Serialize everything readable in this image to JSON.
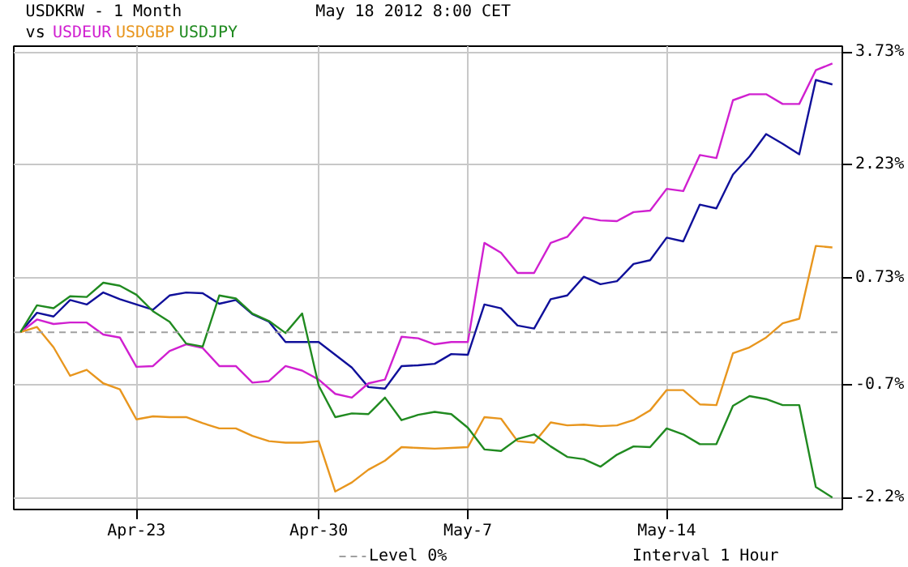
{
  "chart_data": {
    "type": "line",
    "title": "USDKRW - 1 Month",
    "subtitle": "May 18 2012 8:00 CET",
    "legend_title": "vs",
    "grid": true,
    "marker": "none",
    "line_style": "solid",
    "categories": [
      null,
      null,
      null,
      null,
      null,
      null,
      null,
      "Apr-23",
      null,
      null,
      null,
      null,
      null,
      null,
      null,
      null,
      null,
      null,
      "Apr-30",
      null,
      null,
      null,
      null,
      null,
      null,
      null,
      null,
      "May-7",
      null,
      null,
      null,
      null,
      null,
      null,
      null,
      null,
      null,
      null,
      null,
      "May-14",
      null,
      null,
      null,
      null,
      null,
      null,
      null,
      null,
      null,
      null
    ],
    "ylim": [
      -2.36,
      3.81
    ],
    "yticks": [
      {
        "value": 3.73,
        "label": "3.73%"
      },
      {
        "value": 2.23,
        "label": "2.23%"
      },
      {
        "value": 0.73,
        "label": "0.73%"
      },
      {
        "value": -0.7,
        "label": "-0.7%"
      },
      {
        "value": -2.2,
        "label": "-2.2%"
      }
    ],
    "ref_lines": [
      {
        "axis": "y",
        "value": 0,
        "label": "Level 0%",
        "color": "#a0a0a0",
        "line_style": "dashed"
      }
    ],
    "annotations": [
      "Interval 1 Hour"
    ],
    "series": [
      {
        "color": "#10109a",
        "values": [
          0,
          0.26,
          0.21,
          0.43,
          0.37,
          0.53,
          0.44,
          0.37,
          0.3,
          0.49,
          0.53,
          0.52,
          0.38,
          0.43,
          0.24,
          0.14,
          -0.13,
          -0.13,
          -0.13,
          -0.3,
          -0.47,
          -0.73,
          -0.75,
          -0.45,
          -0.44,
          -0.42,
          -0.29,
          -0.3,
          0.37,
          0.32,
          0.09,
          0.05,
          0.44,
          0.49,
          0.74,
          0.64,
          0.68,
          0.91,
          0.96,
          1.26,
          1.21,
          1.7,
          1.65,
          2.1,
          2.34,
          2.64,
          2.51,
          2.37,
          3.36,
          3.3
        ]
      },
      {
        "name": "USDEUR",
        "color": "#d020d0",
        "values": [
          0,
          0.17,
          0.11,
          0.13,
          0.13,
          -0.03,
          -0.07,
          -0.46,
          -0.45,
          -0.25,
          -0.16,
          -0.21,
          -0.45,
          -0.45,
          -0.67,
          -0.65,
          -0.45,
          -0.51,
          -0.63,
          -0.82,
          -0.87,
          -0.68,
          -0.63,
          -0.06,
          -0.08,
          -0.16,
          -0.13,
          -0.13,
          1.19,
          1.06,
          0.79,
          0.79,
          1.19,
          1.27,
          1.53,
          1.49,
          1.48,
          1.6,
          1.62,
          1.91,
          1.88,
          2.36,
          2.32,
          3.09,
          3.17,
          3.17,
          3.04,
          3.04,
          3.49,
          3.58
        ]
      },
      {
        "name": "USDGBP",
        "color": "#e8961e",
        "values": [
          0,
          0.07,
          -0.2,
          -0.58,
          -0.5,
          -0.68,
          -0.76,
          -1.16,
          -1.12,
          -1.13,
          -1.13,
          -1.21,
          -1.28,
          -1.28,
          -1.38,
          -1.45,
          -1.47,
          -1.47,
          -1.45,
          -2.12,
          -2.0,
          -1.83,
          -1.71,
          -1.53,
          -1.54,
          -1.55,
          -1.54,
          -1.53,
          -1.13,
          -1.15,
          -1.45,
          -1.47,
          -1.2,
          -1.24,
          -1.23,
          -1.25,
          -1.24,
          -1.17,
          -1.04,
          -0.77,
          -0.77,
          -0.96,
          -0.97,
          -0.28,
          -0.2,
          -0.07,
          0.12,
          0.18,
          1.15,
          1.13
        ]
      },
      {
        "name": "USDJPY",
        "color": "#208a20",
        "values": [
          0,
          0.36,
          0.32,
          0.48,
          0.47,
          0.66,
          0.62,
          0.5,
          0.28,
          0.14,
          -0.15,
          -0.19,
          0.49,
          0.45,
          0.25,
          0.15,
          -0.01,
          0.25,
          -0.71,
          -1.13,
          -1.08,
          -1.09,
          -0.87,
          -1.17,
          -1.1,
          -1.06,
          -1.09,
          -1.27,
          -1.56,
          -1.58,
          -1.42,
          -1.36,
          -1.52,
          -1.66,
          -1.69,
          -1.79,
          -1.63,
          -1.52,
          -1.53,
          -1.28,
          -1.36,
          -1.49,
          -1.49,
          -0.98,
          -0.85,
          -0.89,
          -0.97,
          -0.97,
          -2.06,
          -2.2
        ]
      }
    ]
  }
}
